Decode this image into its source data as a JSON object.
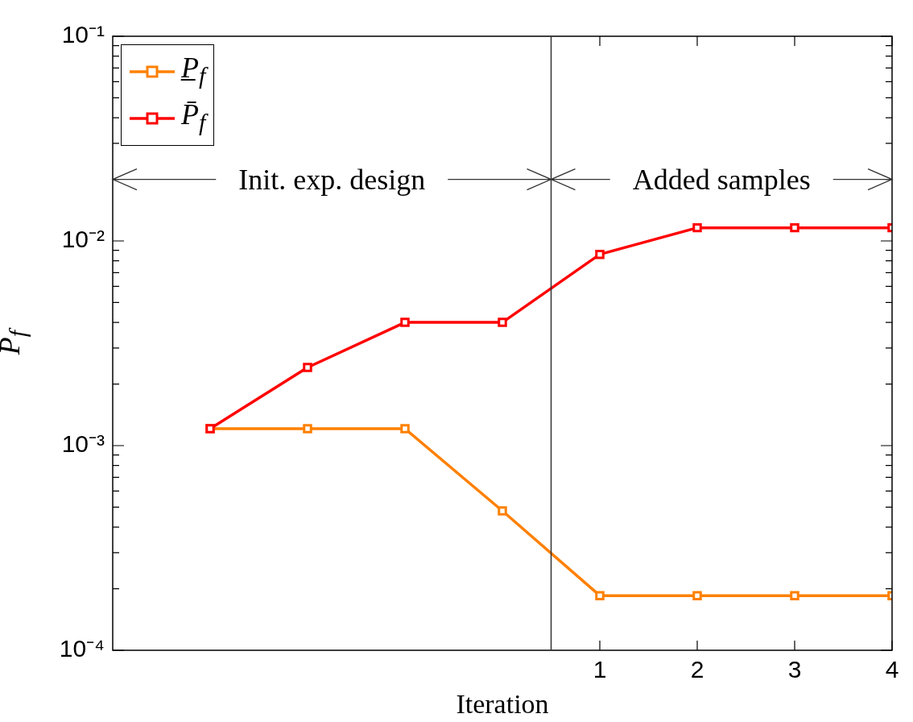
{
  "chart_data": {
    "type": "line",
    "xlabel": "Iteration",
    "ylabel": "P$_{f}$",
    "xlim": [
      -4,
      4
    ],
    "xticks": [
      1,
      2,
      3,
      4
    ],
    "ylim": [
      0.0001,
      0.1
    ],
    "log": true,
    "yticks": [
      {
        "value": 0.0001,
        "label": "10⁻⁴"
      },
      {
        "value": 0.0002,
        "label": null
      },
      {
        "value": 0.0003,
        "label": null
      },
      {
        "value": 0.0004,
        "label": null
      },
      {
        "value": 0.0005,
        "label": null
      },
      {
        "value": 0.0006,
        "label": null
      },
      {
        "value": 0.0007,
        "label": null
      },
      {
        "value": 0.0008,
        "label": null
      },
      {
        "value": 0.0009,
        "label": null
      },
      {
        "value": 0.001,
        "label": "10⁻³"
      },
      {
        "value": 0.002,
        "label": null
      },
      {
        "value": 0.003,
        "label": null
      },
      {
        "value": 0.004,
        "label": null
      },
      {
        "value": 0.005,
        "label": null
      },
      {
        "value": 0.006,
        "label": null
      },
      {
        "value": 0.007,
        "label": null
      },
      {
        "value": 0.008,
        "label": null
      },
      {
        "value": 0.009,
        "label": null
      },
      {
        "value": 0.01,
        "label": "10⁻²"
      },
      {
        "value": 0.02,
        "label": null
      },
      {
        "value": 0.03,
        "label": null
      },
      {
        "value": 0.04,
        "label": null
      },
      {
        "value": 0.05,
        "label": null
      },
      {
        "value": 0.06,
        "label": null
      },
      {
        "value": 0.07,
        "label": null
      },
      {
        "value": 0.08,
        "label": null
      },
      {
        "value": 0.09,
        "label": null
      },
      {
        "value": 0.1,
        "label": "10⁻¹"
      }
    ],
    "series": [
      {
        "name": "P̲$_{f}$",
        "color": "#ff8000",
        "x": [
          -3,
          -2,
          -1,
          0,
          1,
          2,
          3,
          4
        ],
        "values": [
          0.00121,
          0.00121,
          0.00121,
          0.00048,
          0.000185,
          0.000185,
          0.000185,
          0.000185
        ]
      },
      {
        "name": "P̄$_{f}$",
        "color": "#ff0000",
        "x": [
          -3,
          -2,
          -1,
          0,
          1,
          2,
          3,
          4
        ],
        "values": [
          0.00121,
          0.00241,
          0.004,
          0.004,
          0.0086,
          0.0116,
          0.0116,
          0.0116
        ]
      }
    ],
    "ref_lines": [
      {
        "axis": "x",
        "value": 0.5,
        "color": "#333333"
      }
    ],
    "annotations": [
      {
        "text": "Init. exp. design",
        "x": 0.5,
        "y": 0.02
      },
      {
        "text": "Added samples",
        "x": 0.5,
        "y": 0.02
      }
    ],
    "marker": "square",
    "line_style": "solid",
    "legend": "top left",
    "grid": false
  }
}
